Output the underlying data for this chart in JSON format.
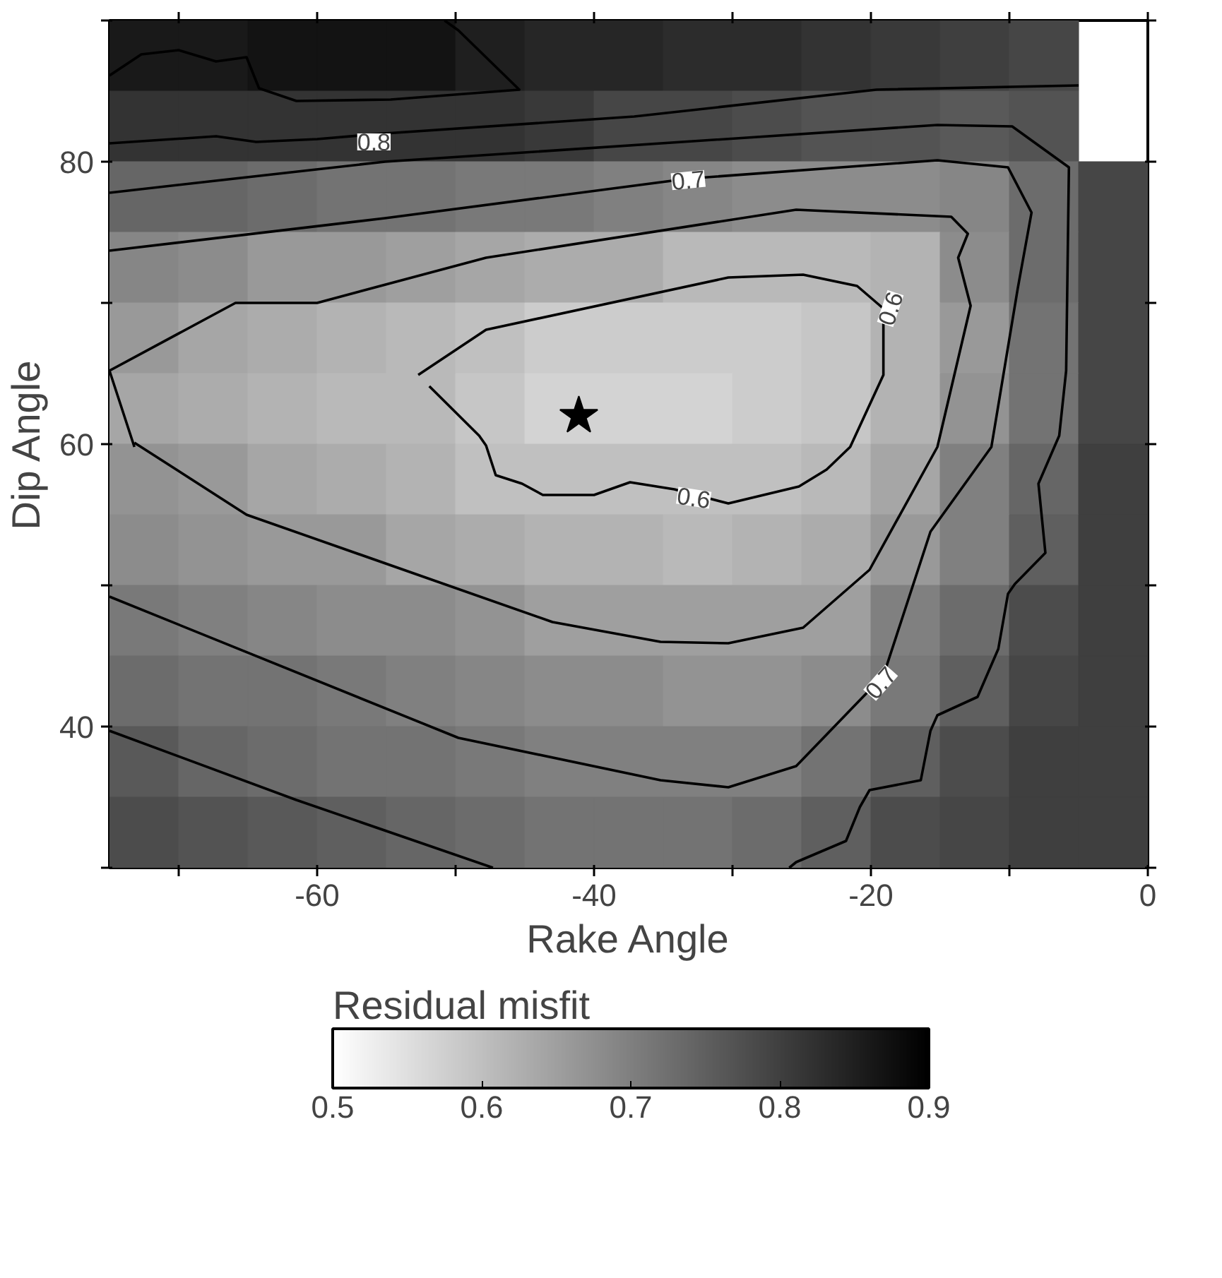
{
  "chart_data": {
    "type": "heatmap",
    "xlabel": "Rake Angle",
    "ylabel": "Dip Angle",
    "clabel": "Residual misfit",
    "xlim": [
      -75,
      0
    ],
    "ylim": [
      30,
      90
    ],
    "xticks": [
      {
        "value": -70,
        "label": null
      },
      -60,
      {
        "value": -50,
        "label": null
      },
      -40,
      {
        "value": -30,
        "label": null
      },
      -20,
      {
        "value": -10,
        "label": null
      },
      0
    ],
    "yticks": [
      {
        "value": 30,
        "label": null
      },
      40,
      {
        "value": 50,
        "label": null
      },
      60,
      {
        "value": 70,
        "label": null
      },
      80,
      {
        "value": 90,
        "label": null
      }
    ],
    "clim": [
      0.5,
      0.9
    ],
    "cticks": [
      0.5,
      0.6,
      0.7,
      0.8,
      0.9
    ],
    "cells": [
      [
        0.86,
        0.86,
        0.87,
        0.87,
        0.87,
        0.85,
        0.84,
        0.84,
        0.83,
        0.83,
        0.82,
        0.81,
        0.8,
        0.79,
        null
      ],
      [
        0.82,
        0.82,
        0.82,
        0.82,
        0.82,
        0.82,
        0.81,
        0.79,
        0.79,
        0.78,
        0.77,
        0.77,
        0.76,
        0.77,
        null
      ],
      [
        0.74,
        0.74,
        0.73,
        0.72,
        0.72,
        0.71,
        0.71,
        0.7,
        0.69,
        0.68,
        0.68,
        0.68,
        0.69,
        0.73,
        0.79
      ],
      [
        0.69,
        0.68,
        0.66,
        0.66,
        0.65,
        0.64,
        0.63,
        0.63,
        0.61,
        0.61,
        0.61,
        0.62,
        0.68,
        0.73,
        0.79
      ],
      [
        0.66,
        0.64,
        0.63,
        0.62,
        0.61,
        0.6,
        0.58,
        0.58,
        0.58,
        0.58,
        0.59,
        0.62,
        0.66,
        0.72,
        0.79
      ],
      [
        0.64,
        0.63,
        0.62,
        0.61,
        0.61,
        0.59,
        0.57,
        0.57,
        0.57,
        0.58,
        0.59,
        0.62,
        0.67,
        0.72,
        0.79
      ],
      [
        0.67,
        0.66,
        0.64,
        0.63,
        0.62,
        0.6,
        0.6,
        0.6,
        0.6,
        0.6,
        0.61,
        0.64,
        0.7,
        0.74,
        0.8
      ],
      [
        0.68,
        0.67,
        0.66,
        0.66,
        0.64,
        0.63,
        0.62,
        0.62,
        0.61,
        0.62,
        0.63,
        0.66,
        0.7,
        0.75,
        0.8
      ],
      [
        0.71,
        0.7,
        0.69,
        0.68,
        0.68,
        0.67,
        0.65,
        0.65,
        0.65,
        0.65,
        0.65,
        0.7,
        0.73,
        0.78,
        0.8
      ],
      [
        0.73,
        0.72,
        0.72,
        0.71,
        0.7,
        0.69,
        0.68,
        0.68,
        0.67,
        0.67,
        0.68,
        0.71,
        0.75,
        0.79,
        0.8
      ],
      [
        0.76,
        0.74,
        0.73,
        0.72,
        0.72,
        0.71,
        0.7,
        0.7,
        0.7,
        0.7,
        0.72,
        0.75,
        0.78,
        0.8,
        0.8
      ],
      [
        0.78,
        0.77,
        0.76,
        0.75,
        0.74,
        0.73,
        0.72,
        0.72,
        0.72,
        0.73,
        0.75,
        0.78,
        0.79,
        0.8,
        0.8
      ]
    ],
    "series": [
      {
        "type": "line",
        "color": "#000000",
        "x": [
          -75,
          -72.7,
          -70,
          -67.3,
          -65.1,
          -64.2,
          -61.5,
          -54.7,
          -45.4,
          -49.8,
          -50.8
        ],
        "values": [
          86.1,
          87.6,
          87.9,
          87.1,
          87.4,
          85.2,
          84.3,
          84.4,
          85.1,
          89.3,
          90.0
        ]
      },
      {
        "type": "line",
        "color": "#000000",
        "x": [
          -75,
          -67.3,
          -64.4,
          -60.0,
          -55.1,
          -37.1,
          -19.6,
          -5.0
        ],
        "values": [
          81.3,
          81.8,
          81.4,
          81.6,
          82.0,
          83.2,
          85.1,
          85.4
        ]
      },
      {
        "type": "line",
        "color": "#000000",
        "x": [
          -75,
          -67.8,
          -55.1,
          -15.2,
          -9.8,
          -5.7,
          -5.9,
          -6.4,
          -7.9,
          -7.4,
          -9.6,
          -10.1,
          -10.8,
          -12.3,
          -15.2,
          -15.7,
          -16.4,
          -20.1,
          -20.8,
          -21.8,
          -25.4,
          -25.9
        ],
        "values": [
          77.8,
          78.6,
          80.0,
          82.6,
          82.5,
          79.6,
          65.2,
          60.6,
          57.2,
          52.3,
          50.1,
          49.4,
          45.5,
          42.1,
          40.8,
          39.7,
          36.2,
          35.5,
          34.3,
          31.9,
          30.4,
          30.0
        ]
      },
      {
        "type": "line",
        "color": "#000000",
        "x": [
          -75,
          -55.1,
          -33.2,
          -15.2,
          -10.1,
          -8.4,
          -9.4,
          -11.3,
          -15.7,
          -19.1,
          -25.4,
          -30.3,
          -35.2,
          -49.8,
          -75
        ],
        "values": [
          73.7,
          76.0,
          78.8,
          80.1,
          79.6,
          76.4,
          71.0,
          59.8,
          53.8,
          43.6,
          37.2,
          35.7,
          36.2,
          39.2,
          49.2
        ]
      },
      {
        "type": "line",
        "color": "#000000",
        "x": [
          -73.2,
          -75,
          -65.9,
          -60.0,
          -47.8,
          -25.4,
          -14.2,
          -13.0,
          -13.7,
          -12.8,
          -15.2,
          -20.1,
          -24.9,
          -30.3,
          -35.2,
          -43.0,
          -65.1,
          -73.2
        ],
        "values": [
          59.8,
          65.2,
          70.0,
          70.0,
          73.2,
          76.6,
          76.1,
          74.9,
          73.2,
          69.8,
          59.8,
          51.1,
          47.0,
          45.9,
          46.0,
          47.4,
          55.0,
          60.1
        ]
      },
      {
        "type": "line",
        "color": "#000000",
        "x": [
          -52.7,
          -47.8,
          -30.3,
          -24.9,
          -21.0,
          -19.1,
          -19.1,
          -21.5,
          -23.2,
          -25.2,
          -30.3,
          -34.2,
          -37.4,
          -40.0,
          -43.7,
          -45.2,
          -47.1,
          -47.8,
          -48.3,
          -51.9
        ],
        "values": [
          64.9,
          68.1,
          71.8,
          72.0,
          71.2,
          69.6,
          64.9,
          59.8,
          58.2,
          57.0,
          55.8,
          56.8,
          57.3,
          56.4,
          56.4,
          57.2,
          57.8,
          59.9,
          60.6,
          64.1
        ]
      },
      {
        "type": "line",
        "color": "#000000",
        "x": [
          -75,
          -61.5,
          -47.3
        ],
        "values": [
          39.7,
          34.8,
          30.0
        ]
      },
      {
        "type": "scatter",
        "marker": "star",
        "color": "#000000",
        "x": [
          -41.1
        ],
        "values": [
          62.0
        ]
      }
    ],
    "annotations": [
      {
        "text": "0.8",
        "x": -55.9,
        "y": 81.4
      },
      {
        "text": "0.7",
        "x": -33.2,
        "y": 78.7
      },
      {
        "text": "0.6",
        "x": -18.6,
        "y": 69.6
      },
      {
        "text": "0.6",
        "x": -32.8,
        "y": 56.2
      },
      {
        "text": "0.7",
        "x": -19.3,
        "y": 43.1
      }
    ]
  }
}
